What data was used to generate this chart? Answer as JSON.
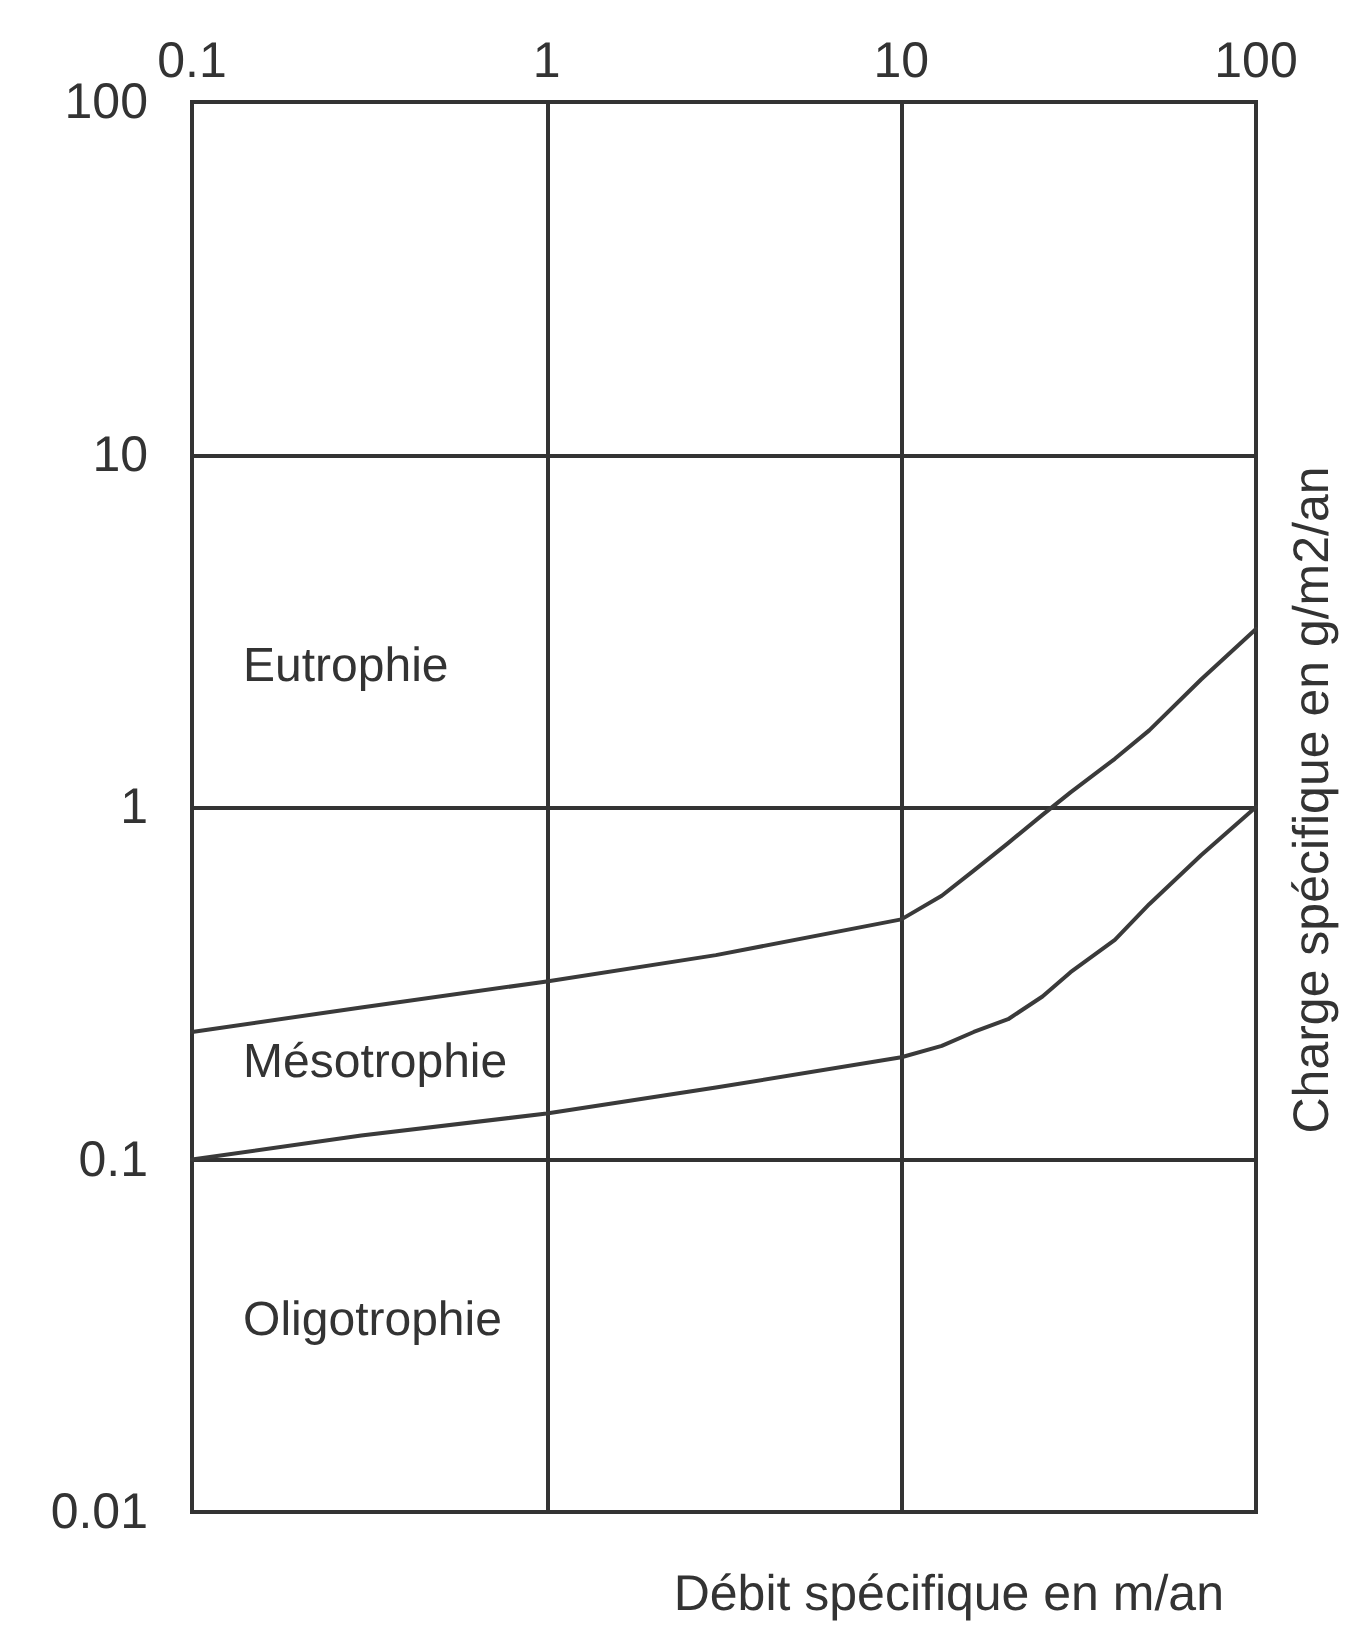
{
  "chart_data": {
    "type": "line",
    "xlabel": "Débit spécifique en m/an",
    "ylabel": "Charge spécifique en g/m2/an",
    "x": [
      0.1,
      0.3,
      1,
      3,
      10,
      13,
      16,
      20,
      25,
      30,
      40,
      50,
      70,
      100
    ],
    "series": [
      {
        "color": "#3a3a3a",
        "values": [
          0.23,
          0.27,
          0.32,
          0.38,
          0.48,
          0.56,
          0.66,
          0.79,
          0.95,
          1.1,
          1.37,
          1.65,
          2.3,
          3.2
        ]
      },
      {
        "color": "#3a3a3a",
        "values": [
          0.1,
          0.117,
          0.135,
          0.16,
          0.195,
          0.21,
          0.23,
          0.25,
          0.29,
          0.34,
          0.42,
          0.53,
          0.73,
          1.0
        ]
      }
    ],
    "log": "xy",
    "xlim": [
      0.1,
      100
    ],
    "xticks": [
      0.1,
      1,
      10,
      100
    ],
    "ylim": [
      0.01,
      100
    ],
    "yticks": [
      0.01,
      0.1,
      1,
      10,
      100
    ],
    "grid": true,
    "line_style": "solid",
    "annotations": [
      "Eutrophie",
      "Mésotrophie",
      "Oligotrophie"
    ]
  }
}
